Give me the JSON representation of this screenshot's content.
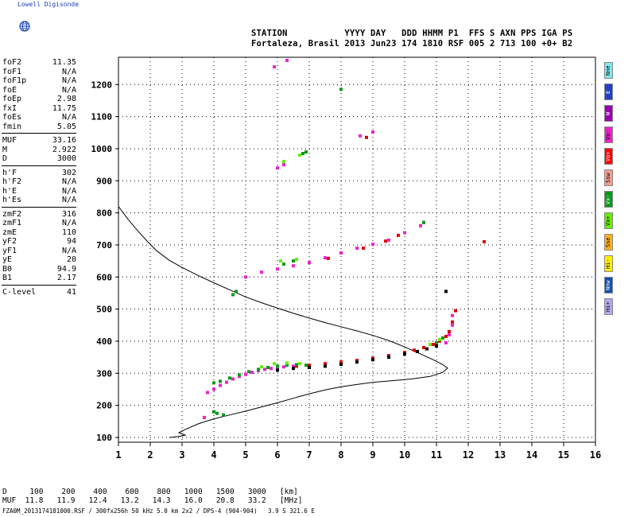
{
  "brand": "Lowell Digisonde",
  "header": {
    "line1": "STATION           YYYY DAY   DDD HHMM P1  FFS S AXN PPS IGA PS",
    "line2": "Fortaleza, Brasil 2013 Jun23 174 1810 RSF 005 2 713 100 +0+ B2"
  },
  "param_groups": [
    [
      {
        "name": "foF2",
        "value": "11.35"
      },
      {
        "name": "foF1",
        "value": "N/A"
      },
      {
        "name": "foF1p",
        "value": "N/A"
      },
      {
        "name": "foE",
        "value": "N/A"
      },
      {
        "name": "foEp",
        "value": "2.98"
      },
      {
        "name": "fxI",
        "value": "11.75"
      },
      {
        "name": "foEs",
        "value": "N/A"
      },
      {
        "name": "fmin",
        "value": "5.05"
      }
    ],
    [
      {
        "name": "MUF",
        "value": "33.16"
      },
      {
        "name": "M",
        "value": "2.922"
      },
      {
        "name": "D",
        "value": "3000"
      }
    ],
    [
      {
        "name": "h'F",
        "value": "302"
      },
      {
        "name": "h'F2",
        "value": "N/A"
      },
      {
        "name": "h'E",
        "value": "N/A"
      },
      {
        "name": "h'Es",
        "value": "N/A"
      }
    ],
    [
      {
        "name": "zmF2",
        "value": "316"
      },
      {
        "name": "zmF1",
        "value": "N/A"
      },
      {
        "name": "zmE",
        "value": "110"
      },
      {
        "name": "yF2",
        "value": "94"
      },
      {
        "name": "yF1",
        "value": "N/A"
      },
      {
        "name": "yE",
        "value": "20"
      },
      {
        "name": "B0",
        "value": "94.9"
      },
      {
        "name": "B1",
        "value": "2.17"
      }
    ],
    [
      {
        "name": "C-level",
        "value": "41"
      }
    ]
  ],
  "legend": [
    {
      "label": "Nne",
      "color": "#7fe8ee"
    },
    {
      "label": "E",
      "color": "#1f40c8"
    },
    {
      "label": "W",
      "color": "#9a00b0"
    },
    {
      "label": "Vo-",
      "color": "#ee22c8"
    },
    {
      "label": "Vo+",
      "color": "#ff0000"
    },
    {
      "label": "Ssw",
      "color": "#f59c8f"
    },
    {
      "label": "Vx-",
      "color": "#0a9a18"
    },
    {
      "label": "Vx+",
      "color": "#66ee00"
    },
    {
      "label": "Sse",
      "color": "#ffb020"
    },
    {
      "label": "Hi-",
      "color": "#fff000"
    },
    {
      "label": "Nnw",
      "color": "#1050b0"
    },
    {
      "label": "Hi+",
      "color": "#b0a8ee"
    }
  ],
  "footer": {
    "line1": "D     100    200    400    600    800   1000   1500   3000   [km]",
    "line2": "MUF  11.8   11.9   12.4   13.2   14.3   16.0   20.8   33.2   [MHz]",
    "line3": "FZA0M_2013174181000.RSF / 300fx256h 50 kHz 5.0 km 2x2 / DPS-4 (904-904)   3.9 S 321.6 E"
  },
  "chart_data": {
    "type": "scatter",
    "xlim": [
      1,
      16
    ],
    "ylim": [
      85,
      1285
    ],
    "x_ticks": [
      1,
      2,
      3,
      4,
      5,
      6,
      7,
      8,
      9,
      10,
      11,
      12,
      13,
      14,
      15,
      16
    ],
    "y_ticks": [
      100,
      200,
      300,
      400,
      500,
      600,
      700,
      800,
      900,
      1000,
      1100,
      1200
    ],
    "grid": true,
    "profile_line": [
      [
        1.0,
        820
      ],
      [
        1.3,
        780
      ],
      [
        1.6,
        745
      ],
      [
        1.9,
        712
      ],
      [
        2.2,
        682
      ],
      [
        2.6,
        652
      ],
      [
        3.0,
        630
      ],
      [
        3.5,
        605
      ],
      [
        4.0,
        582
      ],
      [
        4.5,
        560
      ],
      [
        5.0,
        538
      ],
      [
        5.5,
        520
      ],
      [
        6.0,
        503
      ],
      [
        6.5,
        487
      ],
      [
        7.0,
        472
      ],
      [
        7.5,
        458
      ],
      [
        8.0,
        445
      ],
      [
        8.5,
        432
      ],
      [
        9.0,
        418
      ],
      [
        9.5,
        402
      ],
      [
        10.0,
        382
      ],
      [
        10.5,
        360
      ],
      [
        10.9,
        342
      ],
      [
        11.2,
        327
      ],
      [
        11.35,
        316
      ],
      [
        11.2,
        303
      ],
      [
        10.8,
        290
      ],
      [
        10.2,
        282
      ],
      [
        9.5,
        276
      ],
      [
        9.0,
        272
      ],
      [
        8.5,
        265
      ],
      [
        8.0,
        258
      ],
      [
        7.5,
        248
      ],
      [
        7.0,
        236
      ],
      [
        6.5,
        222
      ],
      [
        6.0,
        208
      ],
      [
        5.5,
        195
      ],
      [
        5.0,
        182
      ],
      [
        4.5,
        170
      ],
      [
        4.0,
        158
      ],
      [
        3.5,
        142
      ],
      [
        3.1,
        125
      ],
      [
        2.9,
        115
      ],
      [
        3.1,
        107
      ],
      [
        2.9,
        103
      ],
      [
        2.6,
        100
      ]
    ],
    "series": [
      {
        "legend": "Vo-",
        "color": "#ee22c8",
        "points": [
          [
            3.8,
            240
          ],
          [
            4.0,
            250
          ],
          [
            4.2,
            262
          ],
          [
            4.4,
            272
          ],
          [
            4.6,
            282
          ],
          [
            4.8,
            290
          ],
          [
            5.0,
            297
          ],
          [
            5.2,
            303
          ],
          [
            5.4,
            308
          ],
          [
            5.6,
            312
          ],
          [
            5.8,
            315
          ],
          [
            6.0,
            318
          ],
          [
            6.2,
            320
          ],
          [
            6.5,
            322
          ],
          [
            5.0,
            600
          ],
          [
            5.5,
            615
          ],
          [
            6.0,
            625
          ],
          [
            6.5,
            635
          ],
          [
            7.0,
            645
          ],
          [
            7.5,
            660
          ],
          [
            8.0,
            675
          ],
          [
            8.5,
            690
          ],
          [
            9.0,
            702
          ],
          [
            9.5,
            715
          ],
          [
            10.0,
            738
          ],
          [
            10.5,
            760
          ],
          [
            10.6,
            770
          ],
          [
            6.0,
            940
          ],
          [
            6.2,
            950
          ],
          [
            8.6,
            1040
          ],
          [
            9.0,
            1052
          ],
          [
            5.9,
            1255
          ],
          [
            6.3,
            1275
          ],
          [
            3.7,
            162
          ],
          [
            11.3,
            395
          ],
          [
            11.4,
            420
          ],
          [
            11.5,
            450
          ],
          [
            11.5,
            480
          ]
        ]
      },
      {
        "legend": "Vo+",
        "color": "#e00000",
        "points": [
          [
            6.6,
            322
          ],
          [
            7.0,
            325
          ],
          [
            7.5,
            330
          ],
          [
            8.0,
            335
          ],
          [
            8.5,
            340
          ],
          [
            9.0,
            347
          ],
          [
            9.5,
            355
          ],
          [
            10.0,
            365
          ],
          [
            10.3,
            372
          ],
          [
            10.6,
            380
          ],
          [
            10.9,
            390
          ],
          [
            11.1,
            400
          ],
          [
            11.3,
            415
          ],
          [
            11.4,
            430
          ],
          [
            11.5,
            460
          ],
          [
            11.6,
            495
          ],
          [
            7.6,
            658
          ],
          [
            8.7,
            690
          ],
          [
            9.4,
            712
          ],
          [
            9.8,
            730
          ],
          [
            12.5,
            710
          ],
          [
            8.8,
            1035
          ]
        ]
      },
      {
        "legend": "Vx-",
        "color": "#0a9a18",
        "points": [
          [
            4.0,
            270
          ],
          [
            4.2,
            275
          ],
          [
            4.5,
            285
          ],
          [
            4.8,
            295
          ],
          [
            5.1,
            305
          ],
          [
            5.4,
            312
          ],
          [
            5.7,
            318
          ],
          [
            6.0,
            322
          ],
          [
            6.3,
            325
          ],
          [
            6.6,
            327
          ],
          [
            6.9,
            325
          ],
          [
            4.0,
            180
          ],
          [
            4.1,
            175
          ],
          [
            4.3,
            170
          ],
          [
            4.6,
            545
          ],
          [
            4.7,
            555
          ],
          [
            6.2,
            640
          ],
          [
            6.5,
            650
          ],
          [
            6.8,
            985
          ],
          [
            6.9,
            990
          ],
          [
            10.6,
            770
          ],
          [
            8.0,
            1185
          ],
          [
            11.0,
            395
          ],
          [
            11.2,
            410
          ]
        ]
      },
      {
        "legend": "Vx+",
        "color": "#66ee00",
        "points": [
          [
            5.5,
            320
          ],
          [
            5.9,
            330
          ],
          [
            6.3,
            332
          ],
          [
            6.7,
            330
          ],
          [
            6.1,
            650
          ],
          [
            6.6,
            655
          ],
          [
            6.7,
            980
          ],
          [
            10.8,
            390
          ],
          [
            11.1,
            405
          ],
          [
            6.2,
            960
          ]
        ]
      },
      {
        "legend": "Hi-",
        "color": "#000000",
        "points": [
          [
            6.0,
            310
          ],
          [
            6.5,
            315
          ],
          [
            7.0,
            318
          ],
          [
            7.5,
            322
          ],
          [
            8.0,
            328
          ],
          [
            8.5,
            335
          ],
          [
            9.0,
            342
          ],
          [
            9.5,
            350
          ],
          [
            10.0,
            360
          ],
          [
            10.4,
            368
          ],
          [
            10.7,
            376
          ],
          [
            11.0,
            385
          ],
          [
            11.3,
            555
          ]
        ]
      }
    ]
  }
}
